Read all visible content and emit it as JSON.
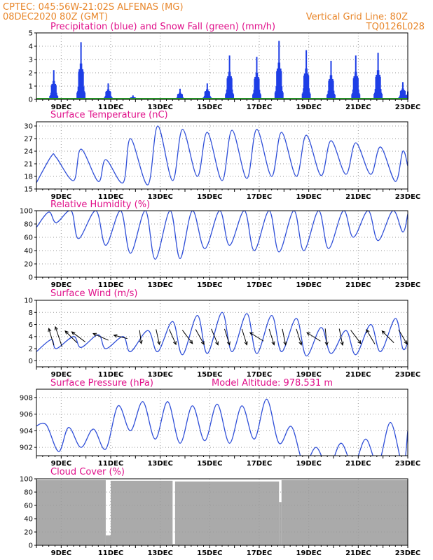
{
  "header": {
    "line1": "CPTEC:   045:56W-21:02S   ALFENAS (MG)",
    "line2": "08DEC2020 80Z (GMT)",
    "right1": "Vertical Grid Line: 80Z",
    "right2": "TQ0126L028"
  },
  "colors": {
    "precip": "#1f3fe6",
    "snow": "#2aa02a",
    "line": "#2f4fd8",
    "cloud": "#aaaaaa",
    "title": "#e0108a",
    "header": "#e8862a",
    "arrow": "#000000"
  },
  "x_labels": [
    "9DEC",
    "11DEC",
    "13DEC",
    "15DEC",
    "17DEC",
    "19DEC",
    "21DEC",
    "23DEC"
  ],
  "x_label_days": [
    9,
    11,
    13,
    15,
    17,
    19,
    21,
    23
  ],
  "x_range_days": [
    8.0,
    23.0
  ],
  "chart_data": [
    {
      "type": "bar",
      "title": "Precipitation (blue) and Snow Fall (green) (mm/h)",
      "ylim": [
        0,
        5
      ],
      "yticks": [
        0,
        1,
        2,
        3,
        4,
        5
      ],
      "series": [
        {
          "name": "Precipitation",
          "bursts": [
            [
              8.7,
              2.2
            ],
            [
              9.8,
              4.3
            ],
            [
              10.9,
              1.2
            ],
            [
              11.9,
              0.3
            ],
            [
              13.8,
              0.8
            ],
            [
              14.9,
              1.2
            ],
            [
              15.8,
              3.3
            ],
            [
              16.9,
              3.2
            ],
            [
              17.8,
              4.4
            ],
            [
              18.9,
              3.7
            ],
            [
              19.9,
              2.9
            ],
            [
              20.9,
              3.3
            ],
            [
              21.8,
              3.5
            ],
            [
              22.8,
              1.3
            ],
            [
              23.0,
              0.6
            ]
          ]
        },
        {
          "name": "Snow Fall",
          "values": [
            0
          ]
        }
      ]
    },
    {
      "type": "line",
      "title": "Surface Temperature (nC)",
      "ylim": [
        15,
        31
      ],
      "yticks": [
        15,
        18,
        21,
        24,
        27,
        30
      ],
      "x": [
        8.0,
        8.6,
        8.8,
        9.5,
        9.8,
        10.5,
        10.8,
        11.5,
        11.8,
        12.5,
        12.9,
        13.5,
        13.9,
        14.5,
        14.9,
        15.5,
        15.9,
        16.5,
        16.9,
        17.5,
        17.9,
        18.5,
        18.9,
        19.5,
        19.9,
        20.5,
        20.9,
        21.5,
        21.9,
        22.5,
        22.8,
        23.0
      ],
      "values": [
        16.5,
        22.8,
        22.5,
        17.0,
        24.5,
        16.8,
        22.0,
        16.5,
        27.0,
        16.0,
        30.0,
        17.0,
        29.2,
        18.0,
        28.5,
        17.0,
        29.0,
        17.5,
        29.2,
        18.0,
        28.5,
        18.0,
        27.8,
        18.2,
        26.5,
        18.5,
        26.0,
        18.5,
        25.0,
        16.8,
        24.0,
        20.5
      ]
    },
    {
      "type": "line",
      "title": "Relative Humidity (%)",
      "ylim": [
        0,
        100
      ],
      "yticks": [
        0,
        20,
        40,
        60,
        80,
        100
      ],
      "x": [
        8.0,
        8.5,
        8.8,
        9.4,
        9.7,
        10.4,
        10.8,
        11.4,
        11.8,
        12.4,
        12.8,
        13.4,
        13.8,
        14.3,
        14.8,
        15.4,
        15.8,
        16.4,
        16.8,
        17.4,
        17.8,
        18.4,
        18.8,
        19.4,
        19.8,
        20.4,
        20.8,
        21.4,
        21.8,
        22.4,
        22.8,
        23.0
      ],
      "values": [
        75,
        98,
        82,
        100,
        58,
        100,
        48,
        100,
        36,
        100,
        27,
        100,
        28,
        100,
        43,
        100,
        48,
        100,
        40,
        100,
        38,
        100,
        40,
        100,
        43,
        100,
        60,
        100,
        55,
        100,
        68,
        95
      ]
    },
    {
      "type": "line",
      "title": "Surface Wind (m/s)",
      "ylim": [
        -1,
        10
      ],
      "yticks": [
        0,
        2,
        4,
        6,
        8,
        10
      ],
      "x": [
        8.0,
        8.6,
        8.8,
        9.5,
        9.8,
        10.5,
        10.8,
        11.5,
        11.8,
        12.5,
        12.9,
        13.5,
        13.9,
        14.5,
        14.9,
        15.5,
        15.9,
        16.5,
        16.9,
        17.5,
        17.9,
        18.5,
        18.9,
        19.5,
        19.9,
        20.5,
        20.9,
        21.5,
        21.9,
        22.5,
        22.8,
        23.0
      ],
      "values": [
        1.5,
        3.5,
        2.0,
        4.0,
        2.2,
        4.3,
        2.0,
        4.0,
        1.5,
        5.0,
        1.5,
        6.5,
        1.0,
        7.5,
        1.2,
        8.0,
        1.5,
        7.8,
        1.2,
        7.5,
        1.5,
        7.0,
        0.8,
        5.5,
        1.2,
        5.0,
        1.0,
        6.0,
        1.5,
        7.0,
        2.0,
        3.0
      ],
      "arrows": [
        [
          8.6,
          -0.3,
          1
        ],
        [
          8.9,
          -0.4,
          1.2
        ],
        [
          9.4,
          -0.7,
          0.7
        ],
        [
          9.7,
          -0.8,
          0.6
        ],
        [
          10.6,
          -0.9,
          0.4
        ],
        [
          11.4,
          -0.8,
          0.2
        ],
        [
          12.2,
          0.1,
          -0.8
        ],
        [
          12.9,
          0.2,
          -0.9
        ],
        [
          13.5,
          0.4,
          -0.9
        ],
        [
          14.1,
          0.6,
          -0.8
        ],
        [
          14.6,
          0.5,
          -0.9
        ],
        [
          15.2,
          0.4,
          -0.95
        ],
        [
          15.7,
          0.3,
          -0.95
        ],
        [
          16.4,
          0.3,
          -0.95
        ],
        [
          16.9,
          -0.8,
          0.5
        ],
        [
          17.5,
          0.3,
          -0.95
        ],
        [
          18.0,
          0.2,
          -0.95
        ],
        [
          18.6,
          0.3,
          -0.95
        ],
        [
          19.2,
          -0.8,
          0.5
        ],
        [
          19.7,
          0.1,
          -0.99
        ],
        [
          20.3,
          0.2,
          -0.98
        ],
        [
          20.9,
          0.6,
          -0.8
        ],
        [
          21.5,
          -0.5,
          0.85
        ],
        [
          22.2,
          -0.7,
          0.7
        ],
        [
          22.8,
          0.5,
          -0.85
        ]
      ]
    },
    {
      "type": "line",
      "title": "Surface Pressure (hPa)",
      "annotation": "Model Altitude: 978.531 m",
      "ylim": [
        901,
        909
      ],
      "yticks": [
        902,
        904,
        906,
        908
      ],
      "x": [
        8.0,
        8.4,
        8.9,
        9.3,
        9.8,
        10.3,
        10.8,
        11.3,
        11.8,
        12.3,
        12.8,
        13.3,
        13.8,
        14.3,
        14.8,
        15.3,
        15.8,
        16.3,
        16.8,
        17.3,
        17.8,
        18.3,
        18.8,
        19.3,
        19.8,
        20.3,
        20.8,
        21.3,
        21.8,
        22.3,
        22.8,
        23.0
      ],
      "values": [
        904.6,
        904.7,
        901.5,
        904.4,
        902.0,
        904.2,
        901.8,
        907.0,
        904.0,
        907.5,
        903.0,
        907.5,
        902.5,
        907.0,
        902.8,
        907.2,
        902.5,
        907.0,
        903.0,
        907.8,
        902.5,
        904.5,
        900.0,
        902.0,
        899.5,
        902.5,
        899.8,
        903.0,
        900.0,
        905.0,
        899.8,
        904.0
      ]
    },
    {
      "type": "bar",
      "title": "Cloud Cover (%)",
      "ylim": [
        0,
        100
      ],
      "yticks": [
        0,
        20,
        40,
        60,
        80,
        100
      ],
      "segments": [
        [
          8.0,
          10.8,
          98
        ],
        [
          10.8,
          11.0,
          15
        ],
        [
          11.0,
          13.5,
          97
        ],
        [
          13.5,
          13.6,
          2
        ],
        [
          13.6,
          17.8,
          96
        ],
        [
          17.8,
          17.9,
          65
        ],
        [
          17.9,
          23.0,
          98
        ]
      ]
    }
  ]
}
